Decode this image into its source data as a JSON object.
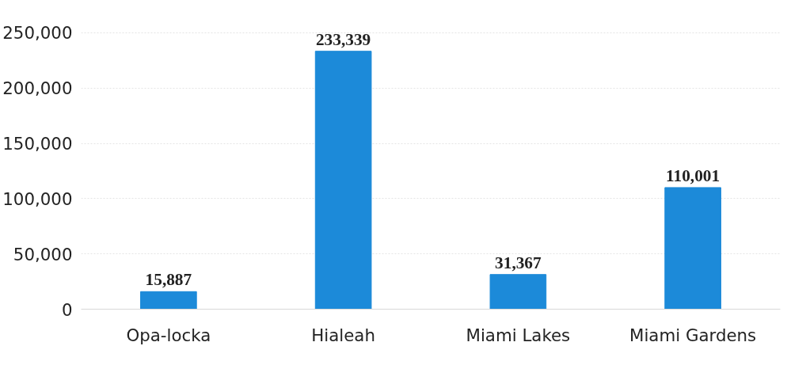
{
  "chart_data": {
    "type": "bar",
    "categories": [
      "Opa-locka",
      "Hialeah",
      "Miami Lakes",
      "Miami Gardens"
    ],
    "values": [
      15887,
      233339,
      31367,
      110001
    ],
    "value_labels": [
      "15,887",
      "233,339",
      "31,367",
      "110,001"
    ],
    "color": "#1c8ad9",
    "ylim": [
      0,
      250000
    ],
    "yticks": [
      {
        "value": 0,
        "label": "0"
      },
      {
        "value": 50000,
        "label": "50,000"
      },
      {
        "value": 100000,
        "label": "100,000"
      },
      {
        "value": 150000,
        "label": "150,000"
      },
      {
        "value": 200000,
        "label": "200,000"
      },
      {
        "value": 250000,
        "label": "250,000"
      }
    ],
    "grid": "y"
  }
}
